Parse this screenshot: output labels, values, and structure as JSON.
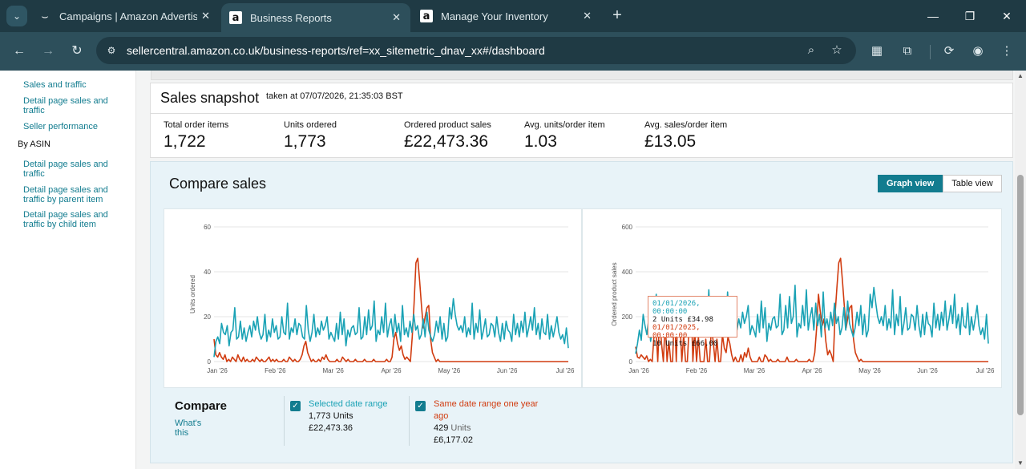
{
  "browser": {
    "tabs": [
      {
        "title": "Campaigns | Amazon Advertisin",
        "favicon": "smile-icon",
        "active": false
      },
      {
        "title": "Business Reports",
        "favicon": "amazon-a-icon",
        "active": true
      },
      {
        "title": "Manage Your Inventory",
        "favicon": "amazon-a-icon",
        "active": false
      }
    ],
    "url": "sellercentral.amazon.co.uk/business-reports/ref=xx_sitemetric_dnav_xx#/dashboard"
  },
  "sidebar": {
    "links_top": [
      "Sales and traffic",
      "Detail page sales and traffic",
      "Seller performance"
    ],
    "section": "By ASIN",
    "links_asin": [
      "Detail page sales and traffic",
      "Detail page sales and traffic by parent item",
      "Detail page sales and traffic by child item"
    ]
  },
  "snapshot": {
    "title": "Sales snapshot",
    "taken": "taken at 07/07/2026, 21:35:03 BST",
    "metrics": [
      {
        "label": "Total order items",
        "value": "1,722"
      },
      {
        "label": "Units ordered",
        "value": "1,773"
      },
      {
        "label": "Ordered product sales",
        "value": "£22,473.36"
      },
      {
        "label": "Avg. units/order item",
        "value": "1.03"
      },
      {
        "label": "Avg. sales/order item",
        "value": "£13.05"
      }
    ]
  },
  "compare": {
    "title": "Compare sales",
    "graph_view": "Graph view",
    "table_view": "Table view",
    "label": "Compare",
    "whats_this": "What's this",
    "selected": {
      "name": "Selected date range",
      "units": "1,773 Units",
      "sales": "£22,473.36",
      "color": "#1aa2b5"
    },
    "previous": {
      "name": "Same date range one year ago",
      "units_value": "429",
      "units_word": "Units",
      "sales": "£6,177.02",
      "color": "#d13c10"
    },
    "tooltip": {
      "line1": "01/01/2026, 00:00:00",
      "line2": "2 Units £34.98",
      "line3": "01/01/2025, 00:00:00",
      "line4": "10 Units £66.00"
    }
  },
  "chart_data": [
    {
      "type": "line",
      "ylabel": "Units ordered",
      "ylim": [
        0,
        60
      ],
      "yticks": [
        0,
        20,
        40,
        60
      ],
      "x_ticks": [
        "Jan '26",
        "Feb '26",
        "Mar '26",
        "Apr '26",
        "May '26",
        "Jun '26",
        "Jul '26"
      ],
      "series": [
        {
          "name": "Selected date range",
          "color": "#1aa2b5",
          "values": [
            2,
            9,
            11,
            8,
            17,
            13,
            12,
            16,
            7,
            13,
            14,
            24,
            10,
            11,
            18,
            10,
            15,
            9,
            13,
            16,
            11,
            18,
            14,
            20,
            13,
            10,
            12,
            21,
            9,
            14,
            11,
            19,
            13,
            16,
            10,
            11,
            20,
            13,
            12,
            26,
            10,
            15,
            13,
            19,
            12,
            17,
            16,
            11,
            10,
            25,
            14,
            9,
            13,
            21,
            11,
            15,
            12,
            18,
            14,
            16,
            20,
            10,
            13,
            11,
            9,
            17,
            10,
            22,
            12,
            19,
            7,
            14,
            11,
            15,
            16,
            12,
            13,
            24,
            10,
            11,
            20,
            12,
            23,
            14,
            16,
            27,
            9,
            14,
            12,
            20,
            13,
            26,
            11,
            16,
            19,
            11,
            21,
            13,
            17,
            9,
            25,
            12,
            15,
            11,
            18,
            13,
            21,
            14,
            16,
            10,
            12,
            19,
            11,
            22,
            14,
            11,
            9,
            12,
            18,
            13,
            20,
            10,
            17,
            9,
            11,
            24,
            19,
            28,
            21,
            16,
            14,
            16,
            13,
            20,
            11,
            15,
            12,
            26,
            10,
            17,
            13,
            23,
            10,
            14,
            19,
            11,
            12,
            17,
            16,
            11,
            20,
            13,
            9,
            17,
            10,
            18,
            14,
            13,
            9,
            21,
            12,
            17,
            11,
            18,
            13,
            22,
            11,
            15,
            20,
            14,
            24,
            12,
            17,
            10,
            19,
            13,
            12,
            21,
            10,
            16,
            11,
            15,
            20,
            13,
            10,
            12,
            8,
            15,
            6
          ]
        },
        {
          "name": "Same date range one year ago",
          "color": "#d13c10",
          "values": [
            10,
            3,
            2,
            4,
            2,
            1,
            3,
            0,
            1,
            0,
            2,
            1,
            0,
            3,
            1,
            0,
            2,
            0,
            1,
            0,
            0,
            1,
            0,
            2,
            1,
            0,
            1,
            0,
            0,
            1,
            2,
            0,
            1,
            0,
            1,
            0,
            0,
            0,
            1,
            0,
            0,
            2,
            1,
            0,
            1,
            0,
            0,
            1,
            3,
            7,
            9,
            4,
            2,
            0,
            1,
            0,
            0,
            1,
            0,
            2,
            1,
            3,
            1,
            0,
            0,
            0,
            0,
            1,
            0,
            0,
            2,
            1,
            0,
            1,
            0,
            0,
            0,
            1,
            0,
            0,
            0,
            0,
            1,
            0,
            0,
            0,
            0,
            1,
            0,
            0,
            0,
            0,
            0,
            0,
            1,
            0,
            0,
            2,
            10,
            13,
            8,
            5,
            7,
            3,
            1,
            2,
            1,
            0,
            11,
            26,
            44,
            46,
            36,
            25,
            15,
            20,
            24,
            25,
            10,
            4,
            2,
            0,
            1,
            0,
            0,
            0,
            0,
            0,
            0,
            0,
            0,
            0,
            0,
            0,
            0,
            0,
            0,
            0,
            0,
            0,
            0,
            0,
            0,
            0,
            0,
            0,
            0,
            0,
            0,
            0,
            0,
            0,
            0,
            0,
            0,
            0,
            0,
            0,
            0,
            0,
            0,
            0,
            0,
            0,
            0,
            0,
            0,
            0,
            0,
            0,
            0,
            0,
            0,
            0,
            0,
            0,
            0,
            0,
            0,
            0,
            0,
            0,
            0,
            0,
            0,
            0,
            0,
            0,
            0,
            0,
            0,
            0,
            0,
            0
          ]
        }
      ]
    },
    {
      "type": "line",
      "ylabel": "Ordered product sales",
      "ylim": [
        0,
        600
      ],
      "yticks": [
        0,
        200,
        400,
        600
      ],
      "x_ticks": [
        "Jan '26",
        "Feb '26",
        "Mar '26",
        "Apr '26",
        "May '26",
        "Jun '26",
        "Jul '26"
      ],
      "series": [
        {
          "name": "Selected date range",
          "color": "#1aa2b5",
          "values": [
            35,
            80,
            140,
            95,
            210,
            160,
            120,
            190,
            90,
            150,
            170,
            300,
            120,
            140,
            220,
            130,
            180,
            110,
            160,
            200,
            140,
            230,
            170,
            250,
            160,
            120,
            150,
            260,
            110,
            170,
            140,
            240,
            160,
            200,
            130,
            140,
            250,
            160,
            150,
            320,
            120,
            190,
            160,
            240,
            150,
            210,
            200,
            140,
            130,
            310,
            170,
            110,
            160,
            260,
            140,
            190,
            150,
            220,
            170,
            200,
            250,
            120,
            160,
            140,
            110,
            210,
            130,
            270,
            150,
            240,
            90,
            170,
            140,
            190,
            200,
            150,
            160,
            300,
            120,
            140,
            250,
            150,
            290,
            170,
            200,
            340,
            110,
            170,
            150,
            250,
            160,
            320,
            140,
            200,
            240,
            140,
            260,
            160,
            210,
            110,
            310,
            150,
            190,
            140,
            220,
            160,
            260,
            170,
            200,
            120,
            150,
            240,
            140,
            270,
            170,
            140,
            110,
            150,
            220,
            160,
            250,
            120,
            210,
            110,
            140,
            300,
            240,
            330,
            260,
            200,
            170,
            200,
            160,
            250,
            140,
            190,
            150,
            320,
            120,
            210,
            160,
            290,
            120,
            170,
            240,
            140,
            150,
            210,
            200,
            140,
            250,
            160,
            110,
            210,
            120,
            220,
            170,
            160,
            110,
            260,
            150,
            210,
            140,
            220,
            160,
            270,
            140,
            190,
            250,
            170,
            300,
            150,
            210,
            120,
            240,
            160,
            150,
            260,
            120,
            200,
            140,
            190,
            250,
            160,
            120,
            150,
            100,
            210,
            80
          ]
        },
        {
          "name": "Same date range one year ago",
          "color": "#d13c10",
          "values": [
            66,
            20,
            15,
            30,
            20,
            10,
            25,
            0,
            10,
            0,
            120,
            150,
            0,
            200,
            80,
            0,
            180,
            0,
            90,
            0,
            0,
            240,
            0,
            260,
            180,
            0,
            120,
            0,
            0,
            160,
            290,
            0,
            140,
            0,
            110,
            0,
            0,
            0,
            100,
            0,
            0,
            150,
            90,
            0,
            100,
            0,
            0,
            120,
            60,
            40,
            110,
            80,
            30,
            0,
            20,
            0,
            0,
            30,
            0,
            40,
            20,
            60,
            20,
            0,
            0,
            0,
            0,
            20,
            0,
            0,
            30,
            20,
            0,
            10,
            0,
            0,
            0,
            10,
            0,
            0,
            0,
            0,
            20,
            0,
            0,
            0,
            0,
            10,
            0,
            0,
            0,
            0,
            0,
            0,
            10,
            0,
            0,
            40,
            150,
            300,
            220,
            160,
            190,
            90,
            30,
            50,
            30,
            0,
            210,
            330,
            440,
            460,
            360,
            250,
            150,
            200,
            240,
            250,
            100,
            40,
            20,
            0,
            10,
            0,
            0,
            0,
            0,
            0,
            0,
            0,
            0,
            0,
            0,
            0,
            0,
            0,
            0,
            0,
            0,
            0,
            0,
            0,
            0,
            0,
            0,
            0,
            0,
            0,
            0,
            0,
            0,
            0,
            0,
            0,
            0,
            0,
            0,
            0,
            0,
            0,
            0,
            0,
            0,
            0,
            0,
            0,
            0,
            0,
            0,
            0,
            0,
            0,
            0,
            0,
            0,
            0,
            0,
            0,
            0,
            0,
            0,
            0,
            0,
            0,
            0,
            0,
            0,
            0,
            0,
            0,
            0,
            0
          ]
        }
      ]
    }
  ]
}
